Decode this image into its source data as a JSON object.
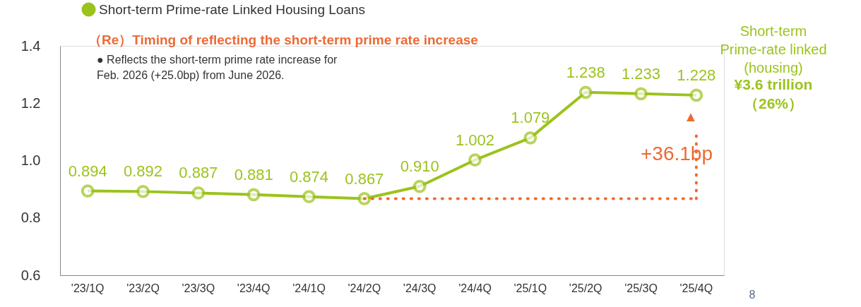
{
  "chart_data": {
    "type": "line",
    "categories": [
      "'23/1Q",
      "'23/2Q",
      "'23/3Q",
      "'23/4Q",
      "'24/1Q",
      "'24/2Q",
      "'24/3Q",
      "'24/4Q",
      "'25/1Q",
      "'25/2Q",
      "'25/3Q",
      "'25/4Q"
    ],
    "series": [
      {
        "name": "Short-term Prime-rate Linked Housing Loans",
        "color": "#9bc31c",
        "values": [
          0.894,
          0.892,
          0.887,
          0.881,
          0.874,
          0.867,
          0.91,
          1.002,
          1.079,
          1.238,
          1.233,
          1.228
        ],
        "value_labels": [
          "0.894",
          "0.892",
          "0.887",
          "0.881",
          "0.874",
          "0.867",
          "0.910",
          "1.002",
          "1.079",
          "1.238",
          "1.233",
          "1.228"
        ]
      }
    ],
    "ylim": [
      0.6,
      1.4
    ],
    "yticks": [
      {
        "value": 0.6,
        "label": "0.6"
      },
      {
        "value": 0.8,
        "label": "0.8"
      },
      {
        "value": 1.0,
        "label": "1.0"
      },
      {
        "value": 1.2,
        "label": "1.2"
      },
      {
        "value": 1.4,
        "label": "1.4"
      }
    ],
    "grid": false,
    "legend": "top",
    "marker": "circle",
    "line_style": "solid",
    "annotations": [
      "（Re）Timing of reflecting the short-term prime rate increase",
      "●  Reflects the short-term prime rate increase for\n     Feb. 2026 (+25.0bp) from June 2026.",
      "+36.1bp",
      "▲",
      "Short-term\nPrime-rate linked\n(housing)",
      "¥3.6 trillion\n（26%）",
      "8"
    ]
  }
}
